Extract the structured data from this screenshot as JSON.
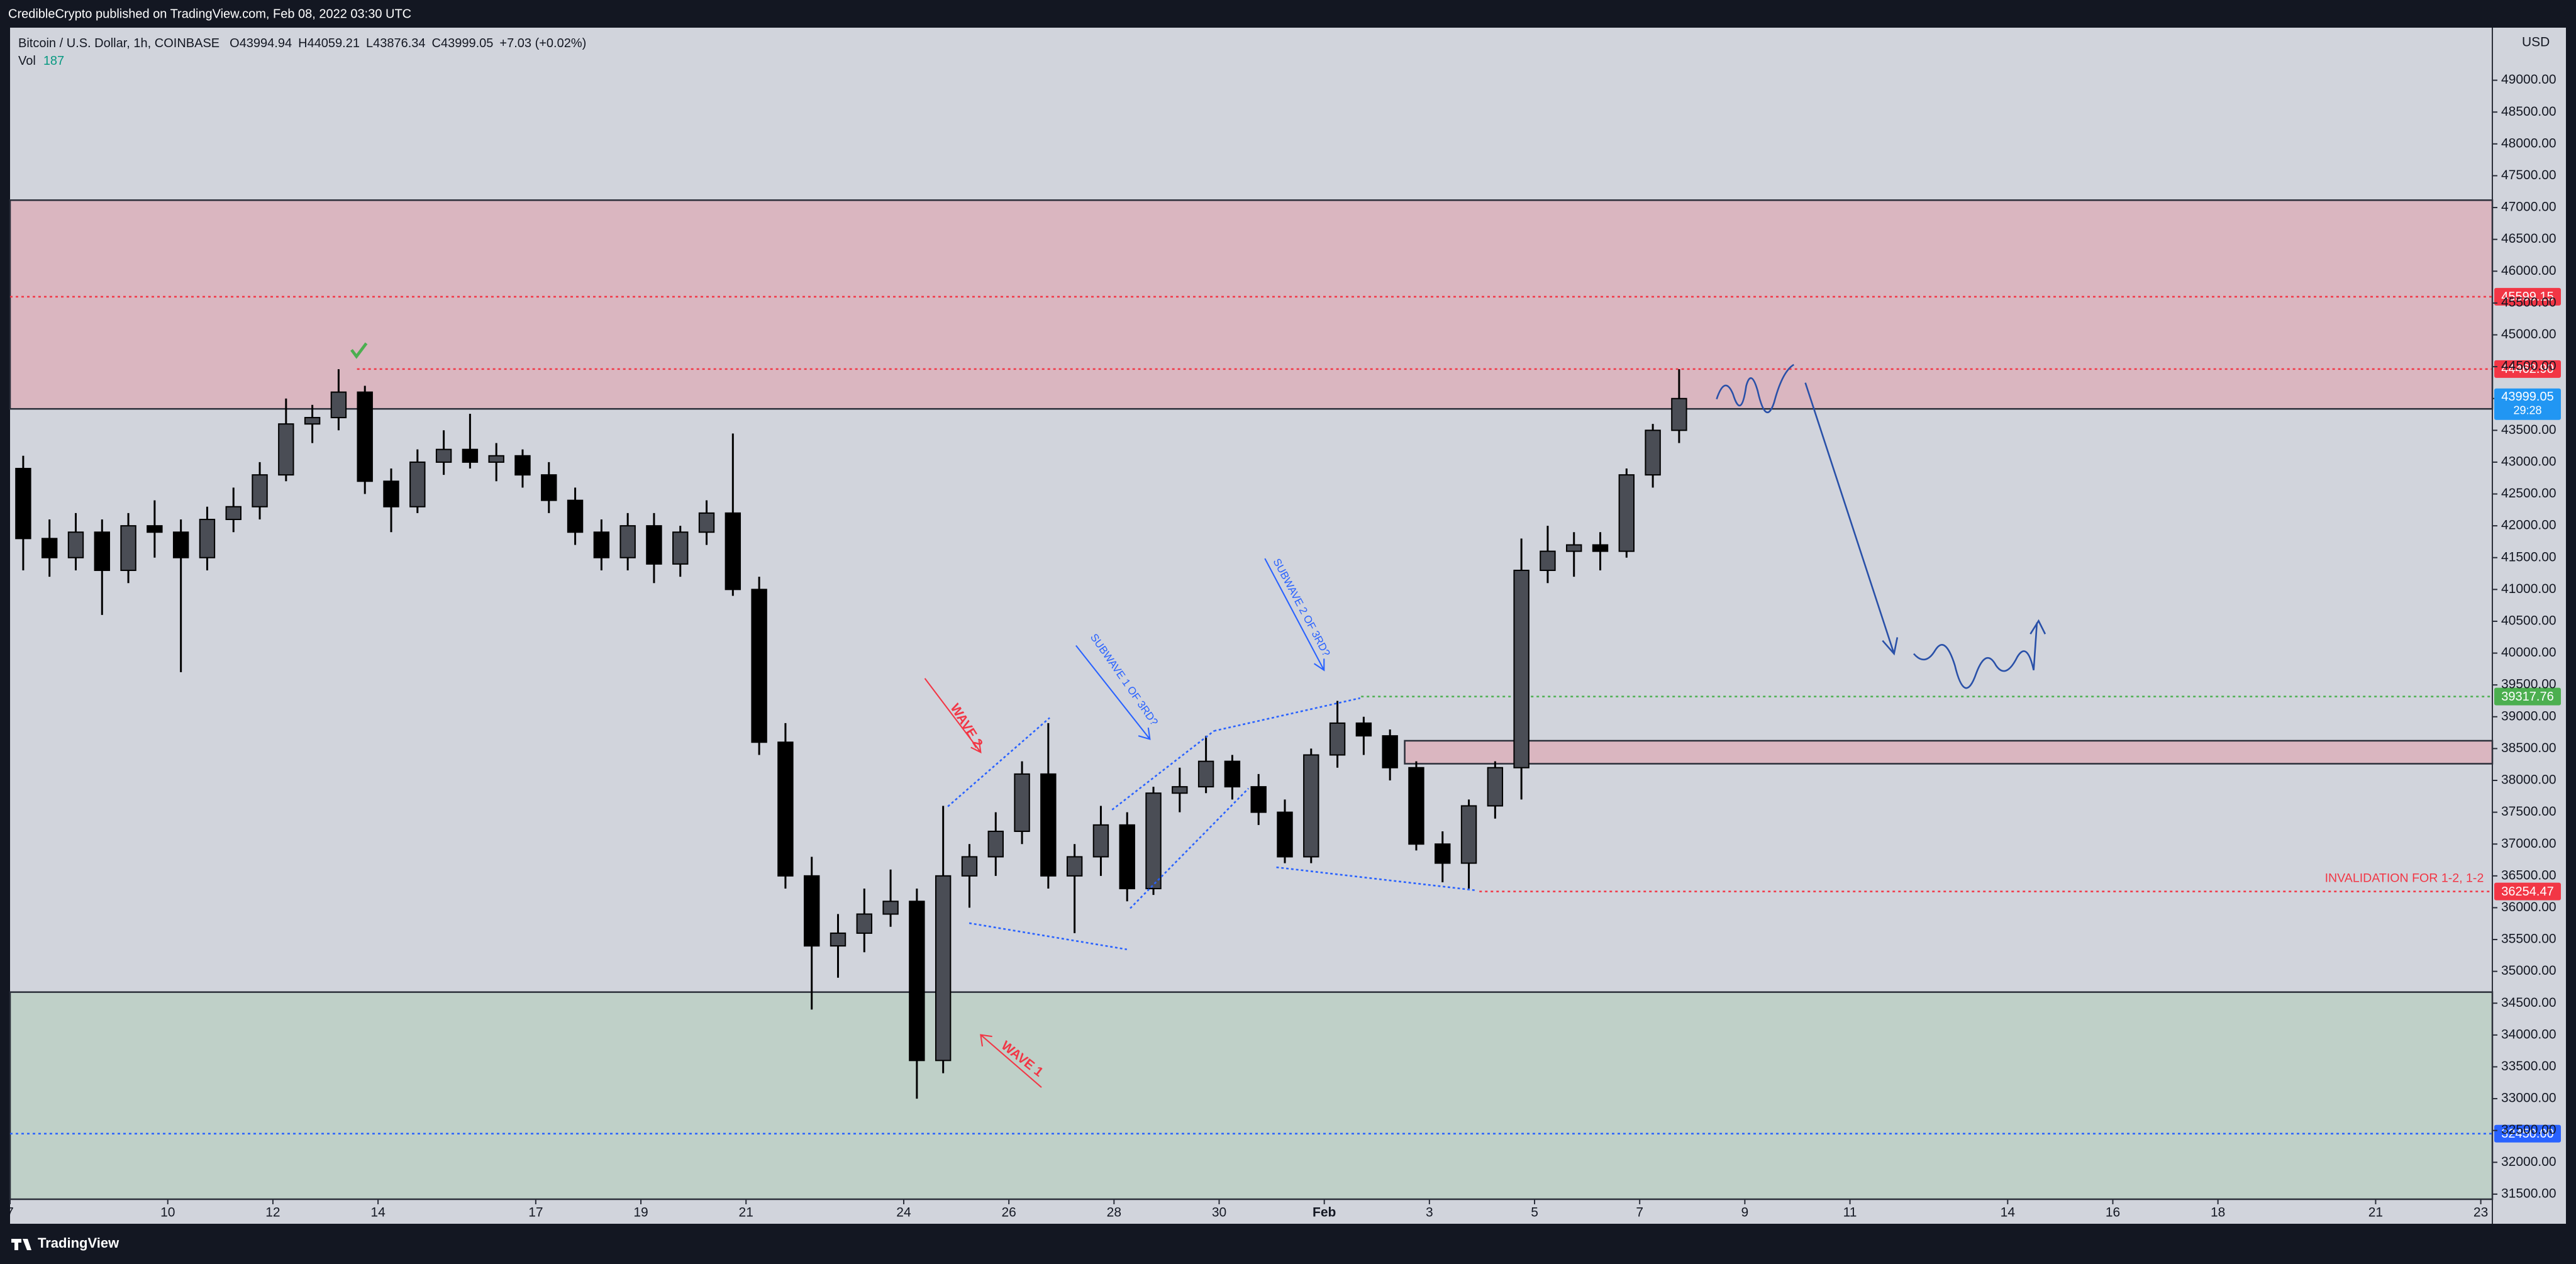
{
  "chart_data": {
    "type": "candlestick",
    "published": "CredibleCrypto published on TradingView.com, Feb 08, 2022 03:30 UTC",
    "symbol": "Bitcoin / U.S. Dollar, 1h, COINBASE",
    "ohlc": [
      {
        "label": "O",
        "value": 43994.94
      },
      {
        "label": "H",
        "value": 44059.21
      },
      {
        "label": "L",
        "value": 43876.34
      },
      {
        "label": "C",
        "value": 43999.05
      }
    ],
    "change": "+7.03 (+0.02%)",
    "volume": {
      "label": "Vol",
      "value": 187
    },
    "currency": "USD",
    "brand": "TradingView",
    "color": "#000000",
    "x": [
      7.25,
      7.75,
      8.25,
      8.75,
      9.25,
      9.75,
      10.25,
      10.75,
      11.25,
      11.75,
      12.25,
      12.75,
      13.25,
      13.75,
      14.25,
      14.75,
      15.25,
      15.75,
      16.25,
      16.75,
      17.25,
      17.75,
      18.25,
      18.75,
      19.25,
      19.75,
      20.25,
      20.75,
      21.25,
      21.75,
      22.25,
      22.75,
      23.25,
      23.75,
      24.25,
      24.75,
      25.25,
      25.75,
      26.25,
      26.75,
      27.25,
      27.75,
      28.25,
      28.75,
      29.25,
      29.75,
      30.25,
      30.75,
      31.25,
      31.75,
      32.25,
      32.75,
      33.25,
      33.75,
      34.25,
      34.75,
      35.25,
      35.75,
      36.25,
      36.75,
      37.25,
      37.75,
      38.25,
      38.75
    ],
    "open": [
      42900,
      41800,
      41500,
      41900,
      41300,
      42000,
      41900,
      41500,
      42100,
      42300,
      42800,
      43600,
      43700,
      44100,
      42700,
      42300,
      43000,
      43200,
      43000,
      43100,
      42800,
      42400,
      41900,
      41500,
      42000,
      41400,
      41900,
      42200,
      41000,
      38600,
      36500,
      35400,
      35600,
      35900,
      36100,
      33600,
      36500,
      36800,
      37200,
      38100,
      36500,
      36800,
      37300,
      36300,
      37800,
      37900,
      38300,
      37900,
      37500,
      36800,
      38400,
      38900,
      38700,
      38200,
      37000,
      36700,
      37600,
      38200,
      41300,
      41600,
      41700,
      41600,
      42800,
      43500
    ],
    "high": [
      43100,
      42100,
      42200,
      42100,
      42200,
      42400,
      42100,
      42300,
      42600,
      43000,
      44000,
      43900,
      44460,
      44200,
      42900,
      43200,
      43500,
      43760,
      43300,
      43200,
      43000,
      42600,
      42100,
      42200,
      42200,
      42000,
      42400,
      43450,
      41200,
      38900,
      36800,
      35900,
      36300,
      36600,
      36300,
      37600,
      37000,
      37500,
      38300,
      38900,
      37000,
      37600,
      37500,
      37900,
      38200,
      38700,
      38400,
      38100,
      37700,
      38500,
      39250,
      39000,
      38800,
      38300,
      37200,
      37700,
      38300,
      41800,
      42000,
      41900,
      41900,
      42900,
      43600,
      44460
    ],
    "low": [
      41300,
      41200,
      41300,
      40600,
      41100,
      41500,
      39700,
      41300,
      41900,
      42100,
      42700,
      43300,
      43500,
      42500,
      41900,
      42200,
      42800,
      42900,
      42700,
      42600,
      42200,
      41700,
      41300,
      41300,
      41100,
      41200,
      41700,
      40900,
      38400,
      36300,
      34400,
      34900,
      35300,
      35700,
      33000,
      33400,
      36000,
      36500,
      37000,
      36300,
      35600,
      36500,
      36100,
      36200,
      37500,
      37800,
      37700,
      37300,
      36700,
      36700,
      38200,
      38400,
      38000,
      36900,
      36400,
      36300,
      37400,
      37700,
      41100,
      41200,
      41300,
      41500,
      42600,
      43300
    ],
    "close": [
      41800,
      41500,
      41900,
      41300,
      42000,
      41900,
      41500,
      42100,
      42300,
      42800,
      43600,
      43700,
      44100,
      42700,
      42300,
      43000,
      43200,
      43000,
      43100,
      42800,
      42400,
      41900,
      41500,
      42000,
      41400,
      41900,
      42200,
      41000,
      38600,
      36500,
      35400,
      35600,
      35900,
      36100,
      33600,
      36500,
      36800,
      37200,
      38100,
      36500,
      36800,
      37300,
      36300,
      37800,
      37900,
      38300,
      37900,
      37500,
      36800,
      38400,
      38900,
      38700,
      38200,
      37000,
      36700,
      37600,
      38200,
      41300,
      41600,
      41700,
      41600,
      42800,
      43500,
      43999.05
    ],
    "xlim": [
      7,
      54.22
    ],
    "xticks": [
      7,
      10,
      12,
      14,
      17,
      19,
      21,
      24,
      26,
      28,
      30,
      {
        "value": 32,
        "label": "Feb"
      },
      {
        "value": 34,
        "label": "3"
      },
      {
        "value": 36,
        "label": "5"
      },
      {
        "value": 38,
        "label": "7"
      },
      {
        "value": 40,
        "label": "9"
      },
      {
        "value": 42,
        "label": "11"
      },
      {
        "value": 45,
        "label": "14"
      },
      {
        "value": 47,
        "label": "16"
      },
      {
        "value": 49,
        "label": "18"
      },
      {
        "value": 52,
        "label": "21"
      },
      {
        "value": 54,
        "label": "23"
      }
    ],
    "ylim": [
      31420,
      49826
    ],
    "yticks": [
      {
        "value": 31500,
        "label": "31500.00"
      },
      {
        "value": 32000,
        "label": "32000.00"
      },
      {
        "value": 32500,
        "label": "32500.00"
      },
      {
        "value": 33000,
        "label": "33000.00"
      },
      {
        "value": 33500,
        "label": "33500.00"
      },
      {
        "value": 34000,
        "label": "34000.00"
      },
      {
        "value": 34500,
        "label": "34500.00"
      },
      {
        "value": 35000,
        "label": "35000.00"
      },
      {
        "value": 35500,
        "label": "35500.00"
      },
      {
        "value": 36000,
        "label": "36000.00"
      },
      {
        "value": 36500,
        "label": "36500.00"
      },
      {
        "value": 37000,
        "label": "37000.00"
      },
      {
        "value": 37500,
        "label": "37500.00"
      },
      {
        "value": 38000,
        "label": "38000.00"
      },
      {
        "value": 38500,
        "label": "38500.00"
      },
      {
        "value": 39000,
        "label": "39000.00"
      },
      {
        "value": 39500,
        "label": "39500.00"
      },
      {
        "value": 40000,
        "label": "40000.00"
      },
      {
        "value": 40500,
        "label": "40500.00"
      },
      {
        "value": 41000,
        "label": "41000.00"
      },
      {
        "value": 41500,
        "label": "41500.00"
      },
      {
        "value": 42000,
        "label": "42000.00"
      },
      {
        "value": 42500,
        "label": "42500.00"
      },
      {
        "value": 43000,
        "label": "43000.00"
      },
      {
        "value": 43500,
        "label": "43500.00"
      },
      {
        "value": 44000,
        "label": "44000.00"
      },
      {
        "value": 44500,
        "label": "44500.00"
      },
      {
        "value": 45000,
        "label": "45000.00"
      },
      {
        "value": 45500,
        "label": "45500.00"
      },
      {
        "value": 46000,
        "label": "46000.00"
      },
      {
        "value": 46500,
        "label": "46500.00"
      },
      {
        "value": 47000,
        "label": "47000.00"
      },
      {
        "value": 47500,
        "label": "47500.00"
      },
      {
        "value": 48000,
        "label": "48000.00"
      },
      {
        "value": 48500,
        "label": "48500.00"
      },
      {
        "value": 49000,
        "label": "49000.00"
      }
    ],
    "zones": [
      {
        "from": 43837,
        "to": 47116,
        "start": 7,
        "color": "#dab6c0"
      },
      {
        "from": 31420,
        "to": 34674,
        "start": 7,
        "color": "#bfd0c8"
      },
      {
        "from": 38262,
        "to": 38623,
        "start": 33.53,
        "color": "#dab6c0"
      }
    ],
    "levels": [
      {
        "value": 45599.15,
        "label": "45599.15",
        "start": 7,
        "color": "#f23645"
      },
      {
        "value": 44462.9,
        "label": "44462.90",
        "start": 13.6,
        "color": "#f23645"
      },
      {
        "value": 39317.76,
        "label": "39317.76",
        "start": 32.7,
        "color": "#4caf50"
      },
      {
        "value": 36254.47,
        "label": "36254.47",
        "start": 34.95,
        "color": "#f23645"
      },
      {
        "value": 32450,
        "label": "32450.00",
        "start": 7,
        "color": "#2962ff"
      }
    ],
    "last_price": {
      "value": 43999.05,
      "label": "43999.05",
      "countdown": "29:28",
      "color": "#2196f3"
    },
    "annotations": [
      "WAVE 2",
      "WAVE 1",
      "SUBWAVE 1 OF 3RD?",
      "SUBWAVE 2 OF 3RD?",
      "INVALIDATION FOR 1-2, 1-2"
    ]
  }
}
